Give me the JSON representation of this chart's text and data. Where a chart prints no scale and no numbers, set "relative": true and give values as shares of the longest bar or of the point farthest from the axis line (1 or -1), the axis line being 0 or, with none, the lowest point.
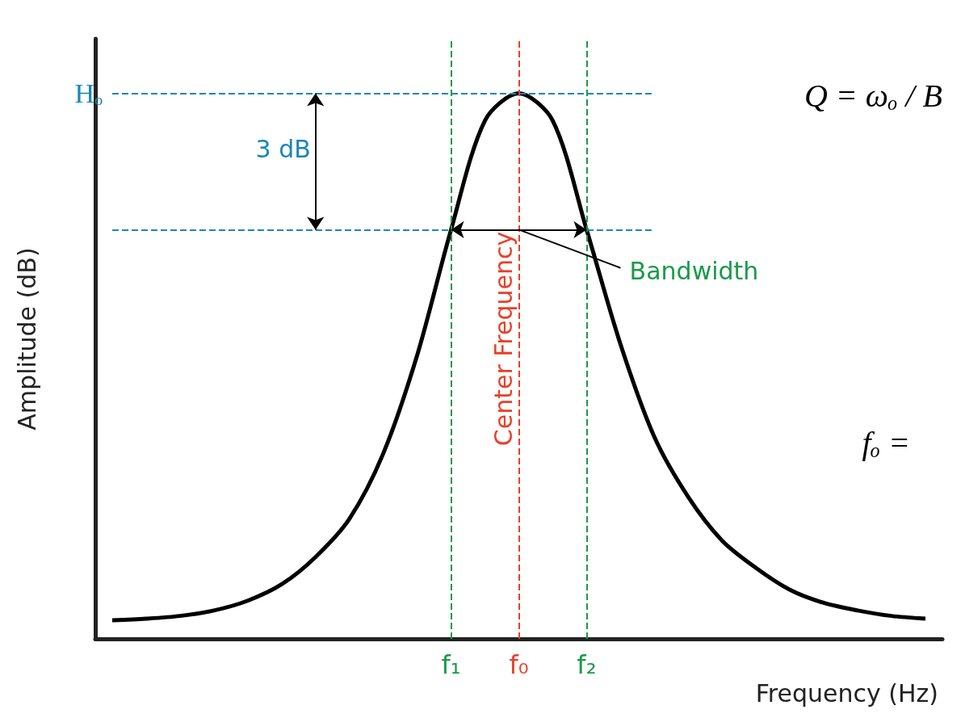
{
  "chart_data": {
    "type": "line",
    "xlabel": "Frequency (Hz)",
    "ylabel": "Amplitude (dB)",
    "relative": true,
    "color": "#000000",
    "marker": "none",
    "line_style": "solid",
    "categories": [
      null,
      null,
      null,
      null,
      null,
      null,
      null,
      null,
      null,
      null,
      "f₁",
      null,
      "f₀",
      null,
      "f₂",
      null,
      null,
      null,
      null,
      null,
      null,
      null,
      null,
      null,
      null
    ],
    "values": [
      0.034,
      0.037,
      0.042,
      0.052,
      0.07,
      0.1,
      0.15,
      0.22,
      0.34,
      0.52,
      0.75,
      0.95,
      1,
      0.95,
      0.75,
      0.54,
      0.37,
      0.26,
      0.18,
      0.13,
      0.09,
      0.066,
      0.052,
      0.042,
      0.037
    ],
    "ref_lines": [
      {
        "axis": "y",
        "value": 1,
        "label": "Hₒ",
        "color": "#1b87b8",
        "line_style": "dashed"
      },
      {
        "axis": "y",
        "value": 0.75,
        "label": null,
        "color": "#1b87b8",
        "line_style": "dashed"
      },
      {
        "axis": "x",
        "value": "f₁",
        "label": null,
        "color": "#1a9a4a",
        "line_style": "dashed"
      },
      {
        "axis": "x",
        "value": "f₀",
        "label": "Center Frequency",
        "color": "#e8402a",
        "line_style": "dashed"
      },
      {
        "axis": "x",
        "value": "f₂",
        "label": null,
        "color": "#1a9a4a",
        "line_style": "dashed"
      }
    ],
    "annotations": [
      "3 dB",
      "Bandwidth",
      "Q = ωₒ / B",
      "fₒ ="
    ]
  }
}
